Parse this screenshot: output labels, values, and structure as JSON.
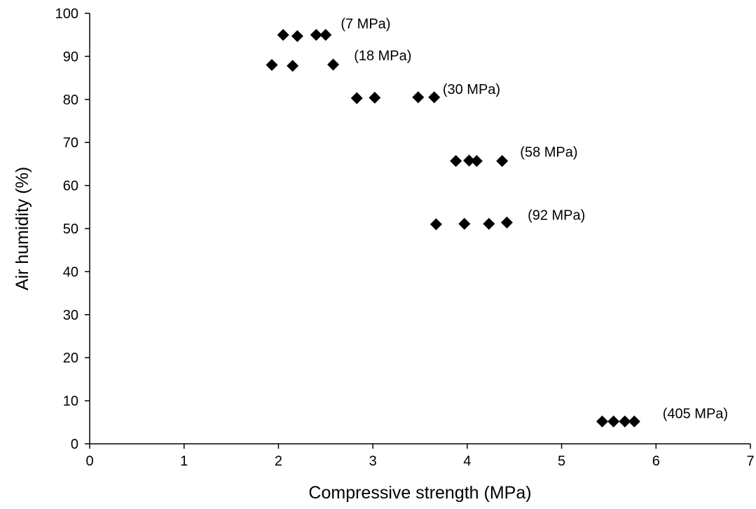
{
  "chart_data": {
    "type": "scatter",
    "title": "",
    "xlabel": "Compressive strength (MPa)",
    "ylabel": "Air humidity (%)",
    "xlim": [
      0,
      7
    ],
    "ylim": [
      0,
      100
    ],
    "xticks": [
      "0",
      "1",
      "2",
      "3",
      "4",
      "5",
      "6",
      "7"
    ],
    "yticks": [
      "0",
      "10",
      "20",
      "30",
      "40",
      "50",
      "60",
      "70",
      "80",
      "90",
      "100"
    ],
    "grid": false,
    "legend": "none",
    "marker": "diamond",
    "marker_color": "#000000",
    "series": [
      {
        "points": [
          {
            "x": 2.05,
            "y": 95
          },
          {
            "x": 2.2,
            "y": 94.7
          },
          {
            "x": 2.4,
            "y": 95
          },
          {
            "x": 2.5,
            "y": 95
          },
          {
            "x": 1.93,
            "y": 88
          },
          {
            "x": 2.15,
            "y": 87.8
          },
          {
            "x": 2.58,
            "y": 88.1
          },
          {
            "x": 2.83,
            "y": 80.3
          },
          {
            "x": 3.02,
            "y": 80.4
          },
          {
            "x": 3.48,
            "y": 80.5
          },
          {
            "x": 3.65,
            "y": 80.5
          },
          {
            "x": 3.88,
            "y": 65.7
          },
          {
            "x": 4.02,
            "y": 65.8
          },
          {
            "x": 4.1,
            "y": 65.7
          },
          {
            "x": 4.37,
            "y": 65.7
          },
          {
            "x": 3.67,
            "y": 51
          },
          {
            "x": 3.97,
            "y": 51.1
          },
          {
            "x": 4.23,
            "y": 51.1
          },
          {
            "x": 4.42,
            "y": 51.4
          },
          {
            "x": 5.43,
            "y": 5.2
          },
          {
            "x": 5.55,
            "y": 5.2
          },
          {
            "x": 5.67,
            "y": 5.2
          },
          {
            "x": 5.77,
            "y": 5.2
          }
        ]
      }
    ],
    "annotations": [
      {
        "text": "(7 MPa)",
        "x": 2.66,
        "y": 97.6
      },
      {
        "text": "(18 MPa)",
        "x": 2.8,
        "y": 90.2
      },
      {
        "text": "(30 MPa)",
        "x": 3.74,
        "y": 82.4
      },
      {
        "text": "(58 MPa)",
        "x": 4.56,
        "y": 67.8
      },
      {
        "text": "(92 MPa)",
        "x": 4.64,
        "y": 53.2
      },
      {
        "text": "(405 MPa)",
        "x": 6.07,
        "y": 7.1
      }
    ]
  }
}
